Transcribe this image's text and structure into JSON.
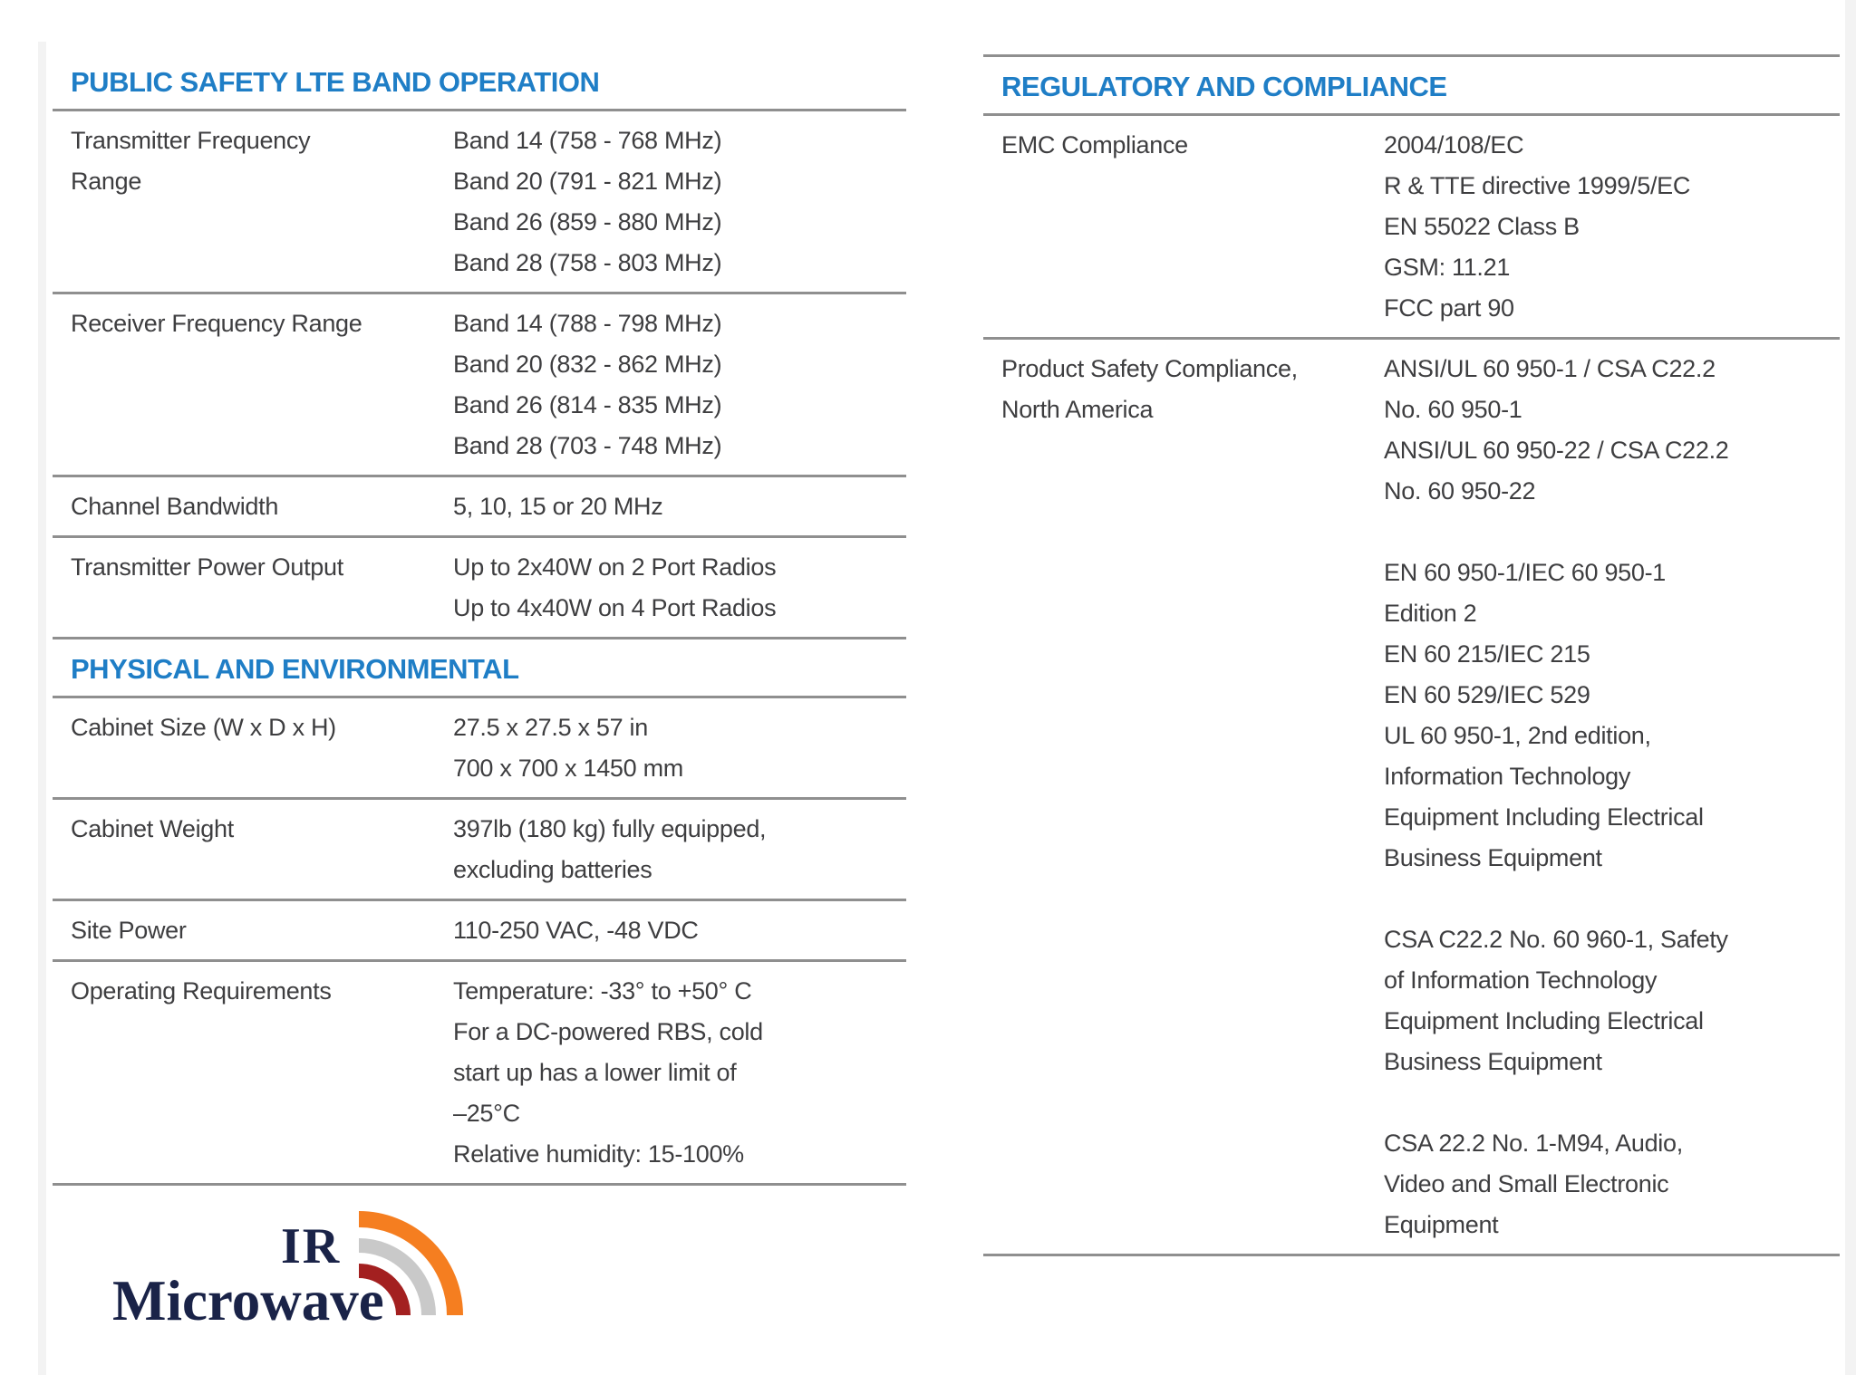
{
  "colors": {
    "heading_blue": "#1f7ec6",
    "body_text": "#3e3e40",
    "rule_gray": "#8f8f8f",
    "logo_navy": "#1a2348",
    "arc_orange": "#f57e20",
    "arc_silver": "#c9c9c9",
    "arc_dark_red": "#a32020"
  },
  "left_column": {
    "sections": [
      {
        "title": "PUBLIC SAFETY LTE BAND OPERATION",
        "top_line": false,
        "rows": [
          {
            "label_lines": [
              "Transmitter Frequency",
              "Range"
            ],
            "value_lines": [
              "Band 14 (758 - 768 MHz)",
              "Band 20 (791 - 821 MHz)",
              "Band 26 (859 - 880 MHz)",
              "Band 28 (758 - 803 MHz)"
            ]
          },
          {
            "label_lines": [
              "Receiver Frequency Range"
            ],
            "value_lines": [
              "Band 14 (788 - 798 MHz)",
              "Band 20 (832 - 862 MHz)",
              "Band 26 (814 - 835 MHz)",
              "Band 28 (703 - 748 MHz)"
            ]
          },
          {
            "label_lines": [
              "Channel Bandwidth"
            ],
            "value_lines": [
              "5, 10, 15 or 20 MHz"
            ]
          },
          {
            "label_lines": [
              "Transmitter Power Output"
            ],
            "value_lines": [
              "Up to 2x40W on 2 Port Radios",
              "Up to 4x40W on 4 Port Radios"
            ]
          }
        ]
      },
      {
        "title": "PHYSICAL AND ENVIRONMENTAL",
        "top_line": false,
        "rows": [
          {
            "label_lines": [
              "Cabinet Size (W x D x H)"
            ],
            "value_lines": [
              "27.5 x 27.5 x 57 in",
              "700 x 700 x 1450 mm"
            ]
          },
          {
            "label_lines": [
              "Cabinet Weight"
            ],
            "value_lines": [
              "397lb (180 kg) fully equipped,",
              "excluding batteries"
            ]
          },
          {
            "label_lines": [
              "Site Power"
            ],
            "value_lines": [
              "110-250 VAC, -48 VDC"
            ]
          },
          {
            "label_lines": [
              "Operating Requirements"
            ],
            "value_lines": [
              "Temperature: -33° to +50° C",
              "For a DC-powered RBS, cold",
              "start up has a lower limit of",
              "–25°C",
              "Relative humidity: 15-100%"
            ]
          }
        ]
      }
    ]
  },
  "right_column": {
    "sections": [
      {
        "title": "REGULATORY AND COMPLIANCE",
        "top_line": true,
        "rows": [
          {
            "label_lines": [
              "EMC Compliance"
            ],
            "value_lines": [
              "2004/108/EC",
              "R & TTE directive 1999/5/EC",
              "EN 55022 Class B",
              "GSM: 11.21",
              "FCC part 90"
            ]
          },
          {
            "label_lines": [
              "Product Safety Compliance,",
              "North America"
            ],
            "value_lines": [
              "ANSI/UL 60 950-1 / CSA C22.2",
              "No. 60 950-1",
              "ANSI/UL 60 950-22 / CSA C22.2",
              "No. 60 950-22",
              "",
              "EN 60 950-1/IEC 60 950-1",
              "Edition 2",
              "EN 60 215/IEC 215",
              "EN 60 529/IEC 529",
              "UL 60 950-1, 2nd edition,",
              "Information Technology",
              "Equipment Including Electrical",
              "Business Equipment",
              "",
              "CSA C22.2 No. 60 960-1, Safety",
              "of Information Technology",
              "Equipment Including Electrical",
              "Business Equipment",
              "",
              "CSA 22.2 No. 1-M94, Audio,",
              "Video and Small Electronic",
              "Equipment"
            ]
          }
        ]
      }
    ]
  },
  "logo": {
    "line1": "IR",
    "line2": "Microwave"
  }
}
